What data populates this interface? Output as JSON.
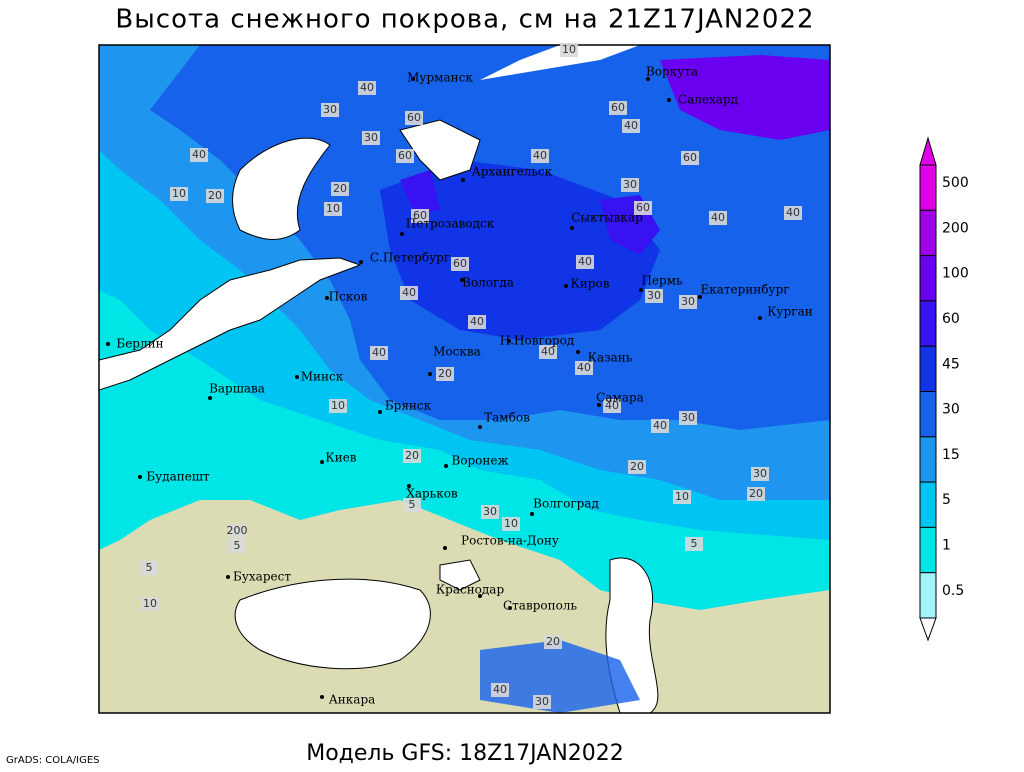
{
  "title": "Высота снежного покрова, см на 21Z17JAN2022",
  "footer": "Модель GFS: 18Z17JAN2022",
  "credit": "GrADS: COLA/IGES",
  "colorbar": {
    "levels": [
      0.5,
      1,
      5,
      15,
      30,
      45,
      60,
      100,
      200,
      500
    ],
    "colors": [
      "#ffffff",
      "#a0f4fa",
      "#00e6e6",
      "#00c4f2",
      "#1e96f0",
      "#1662ea",
      "#1034e6",
      "#3812f0",
      "#6a00f0",
      "#a000ea",
      "#e000e8"
    ]
  },
  "cities": [
    "Мурманск",
    "Воркута",
    "Салехард",
    "Архангельск",
    "Сыктывкар",
    "Петрозаводск",
    "С.Петербург",
    "Вологда",
    "Киров",
    "Пермь",
    "Екатеринбург",
    "Курган",
    "Псков",
    "Н.Новгород",
    "Казань",
    "Москва",
    "Берлин",
    "Варшава",
    "Минск",
    "Брянск",
    "Тамбов",
    "Самара",
    "Киев",
    "Воронеж",
    "Харьков",
    "Волгоград",
    "Будапешт",
    "Ростов-на-Дону",
    "Бухарест",
    "Краснодар",
    "Ставрополь",
    "Анкара"
  ],
  "contour_labels": [
    10,
    40,
    30,
    40,
    60,
    30,
    60,
    60,
    40,
    60,
    20,
    10,
    60,
    20,
    10,
    40,
    30,
    60,
    40,
    40,
    60,
    40,
    30,
    30,
    40,
    40,
    40,
    40,
    20,
    10,
    40,
    40,
    40,
    30,
    20,
    10,
    30,
    20,
    5,
    20,
    30,
    10,
    5,
    200,
    5,
    10,
    5,
    40,
    30,
    20
  ]
}
